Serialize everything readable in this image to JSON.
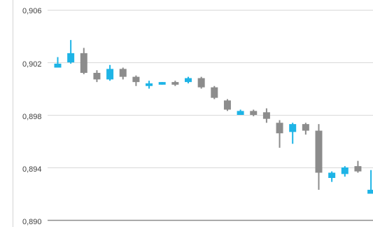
{
  "chart_data": {
    "type": "candlestick",
    "title": "",
    "xlabel": "",
    "ylabel": "",
    "ylim": [
      0.89,
      0.906
    ],
    "y_ticks": [
      "0,906",
      "0,902",
      "0,898",
      "0,894",
      "0,890"
    ],
    "y_tick_values": [
      0.906,
      0.902,
      0.898,
      0.894,
      0.89
    ],
    "grid": true,
    "legend": "none",
    "colors": {
      "up": "#1eb4e6",
      "down": "#8c8c8c",
      "grid": "#d9d9d9",
      "axis": "#8c8c8c"
    },
    "candles": [
      {
        "open": 0.9016,
        "high": 0.9024,
        "low": 0.9016,
        "close": 0.9019
      },
      {
        "open": 0.902,
        "high": 0.9037,
        "low": 0.9019,
        "close": 0.9027
      },
      {
        "open": 0.9027,
        "high": 0.9031,
        "low": 0.9011,
        "close": 0.9012
      },
      {
        "open": 0.9012,
        "high": 0.9014,
        "low": 0.9005,
        "close": 0.9007
      },
      {
        "open": 0.9007,
        "high": 0.9018,
        "low": 0.9006,
        "close": 0.9015
      },
      {
        "open": 0.9015,
        "high": 0.9016,
        "low": 0.9007,
        "close": 0.9009
      },
      {
        "open": 0.9009,
        "high": 0.901,
        "low": 0.9002,
        "close": 0.9005
      },
      {
        "open": 0.9002,
        "high": 0.9006,
        "low": 0.9,
        "close": 0.9004
      },
      {
        "open": 0.9003,
        "high": 0.9005,
        "low": 0.9003,
        "close": 0.9005
      },
      {
        "open": 0.9005,
        "high": 0.9006,
        "low": 0.9002,
        "close": 0.9003
      },
      {
        "open": 0.9005,
        "high": 0.9009,
        "low": 0.9004,
        "close": 0.9008
      },
      {
        "open": 0.9008,
        "high": 0.9009,
        "low": 0.9,
        "close": 0.9001
      },
      {
        "open": 0.9001,
        "high": 0.9002,
        "low": 0.8992,
        "close": 0.8993
      },
      {
        "open": 0.8991,
        "high": 0.8992,
        "low": 0.8983,
        "close": 0.8984
      },
      {
        "open": 0.898,
        "high": 0.8984,
        "low": 0.898,
        "close": 0.8983
      },
      {
        "open": 0.8983,
        "high": 0.8984,
        "low": 0.8979,
        "close": 0.898
      },
      {
        "open": 0.8982,
        "high": 0.8985,
        "low": 0.8974,
        "close": 0.8977
      },
      {
        "open": 0.8974,
        "high": 0.8976,
        "low": 0.8955,
        "close": 0.8966
      },
      {
        "open": 0.8967,
        "high": 0.8974,
        "low": 0.8958,
        "close": 0.8973
      },
      {
        "open": 0.8973,
        "high": 0.8974,
        "low": 0.8965,
        "close": 0.8968
      },
      {
        "open": 0.8968,
        "high": 0.8973,
        "low": 0.8923,
        "close": 0.8936
      },
      {
        "open": 0.8932,
        "high": 0.8937,
        "low": 0.8929,
        "close": 0.8936
      },
      {
        "open": 0.8935,
        "high": 0.8941,
        "low": 0.8933,
        "close": 0.894
      },
      {
        "open": 0.8941,
        "high": 0.8945,
        "low": 0.8936,
        "close": 0.8937
      },
      {
        "open": 0.892,
        "high": 0.8938,
        "low": 0.892,
        "close": 0.8923
      }
    ]
  }
}
